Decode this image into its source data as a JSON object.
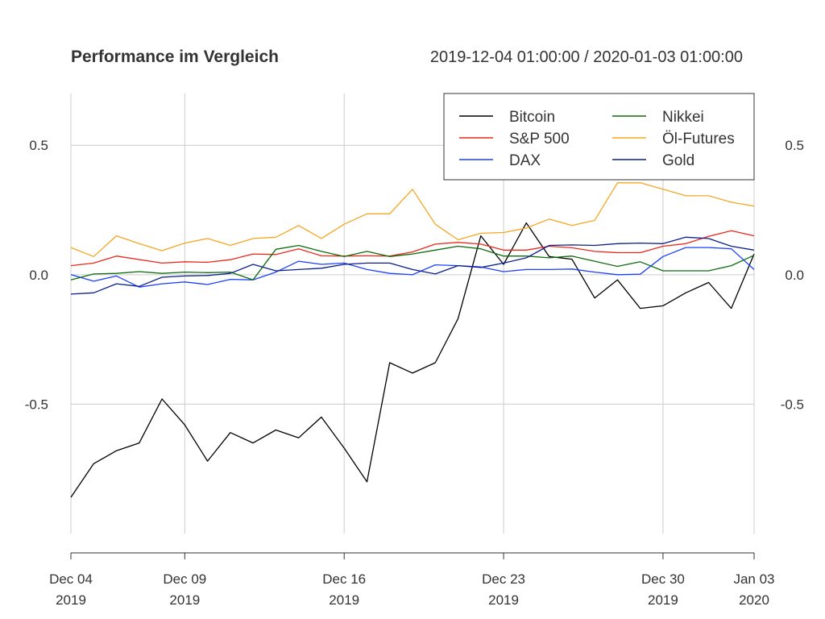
{
  "chart_data": {
    "type": "line",
    "title": "Performance im Vergleich",
    "period_label": "2019-12-04 01:00:00 / 2020-01-03 01:00:00",
    "x_start": "2019-12-04",
    "x_end": "2020-01-03",
    "x_ticks": [
      {
        "date": "2019-12-04",
        "line1": "Dec 04",
        "line2": "2019"
      },
      {
        "date": "2019-12-09",
        "line1": "Dec 09",
        "line2": "2019"
      },
      {
        "date": "2019-12-16",
        "line1": "Dec 16",
        "line2": "2019"
      },
      {
        "date": "2019-12-23",
        "line1": "Dec 23",
        "line2": "2019"
      },
      {
        "date": "2019-12-30",
        "line1": "Dec 30",
        "line2": "2019"
      },
      {
        "date": "2020-01-03",
        "line1": "Jan 03",
        "line2": "2020"
      }
    ],
    "y_ticks": [
      {
        "value": 0.5,
        "label": "0.5"
      },
      {
        "value": 0.0,
        "label": "0.0"
      },
      {
        "value": -0.5,
        "label": "-0.5"
      }
    ],
    "ylim": [
      -1.0,
      0.7
    ],
    "grid": true,
    "legend_position": "top-right",
    "legend_columns": 2,
    "series": [
      {
        "name": "Bitcoin",
        "color": "#000000",
        "x": [
          "2019-12-04",
          "2019-12-05",
          "2019-12-06",
          "2019-12-07",
          "2019-12-08",
          "2019-12-09",
          "2019-12-10",
          "2019-12-11",
          "2019-12-12",
          "2019-12-13",
          "2019-12-14",
          "2019-12-15",
          "2019-12-16",
          "2019-12-17",
          "2019-12-18",
          "2019-12-19",
          "2019-12-20",
          "2019-12-21",
          "2019-12-22",
          "2019-12-23",
          "2019-12-24",
          "2019-12-25",
          "2019-12-26",
          "2019-12-27",
          "2019-12-28",
          "2019-12-29",
          "2019-12-30",
          "2019-12-31",
          "2020-01-01",
          "2020-01-02",
          "2020-01-03"
        ],
        "y": [
          -0.86,
          -0.73,
          -0.68,
          -0.65,
          -0.48,
          -0.58,
          -0.72,
          -0.61,
          -0.65,
          -0.6,
          -0.63,
          -0.55,
          -0.67,
          -0.8,
          -0.34,
          -0.38,
          -0.34,
          -0.17,
          0.15,
          0.04,
          0.2,
          0.07,
          0.06,
          -0.09,
          -0.02,
          -0.13,
          -0.12,
          -0.07,
          -0.03,
          -0.13,
          0.08
        ]
      },
      {
        "name": "S&P 500",
        "color": "#e8291c",
        "x": [
          "2019-12-04",
          "2019-12-05",
          "2019-12-06",
          "2019-12-08",
          "2019-12-09",
          "2019-12-10",
          "2019-12-11",
          "2019-12-12",
          "2019-12-13",
          "2019-12-14",
          "2019-12-15",
          "2019-12-16",
          "2019-12-17",
          "2019-12-18",
          "2019-12-19",
          "2019-12-20",
          "2019-12-21",
          "2019-12-22",
          "2019-12-23",
          "2019-12-24",
          "2019-12-25",
          "2019-12-26",
          "2019-12-27",
          "2019-12-28",
          "2019-12-29",
          "2019-12-30",
          "2019-12-31",
          "2020-01-01",
          "2020-01-02",
          "2020-01-03"
        ],
        "y": [
          0.035,
          0.045,
          0.072,
          0.045,
          0.05,
          0.048,
          0.058,
          0.08,
          0.078,
          0.1,
          0.073,
          0.072,
          0.073,
          0.072,
          0.088,
          0.118,
          0.125,
          0.118,
          0.095,
          0.095,
          0.11,
          0.104,
          0.09,
          0.085,
          0.085,
          0.11,
          0.12,
          0.148,
          0.17,
          0.15
        ]
      },
      {
        "name": "DAX",
        "color": "#1f3fff",
        "x": [
          "2019-12-04",
          "2019-12-05",
          "2019-12-06",
          "2019-12-07",
          "2019-12-08",
          "2019-12-09",
          "2019-12-10",
          "2019-12-11",
          "2019-12-12",
          "2019-12-13",
          "2019-12-14",
          "2019-12-15",
          "2019-12-16",
          "2019-12-17",
          "2019-12-18",
          "2019-12-19",
          "2019-12-20",
          "2019-12-21",
          "2019-12-22",
          "2019-12-23",
          "2019-12-24",
          "2019-12-25",
          "2019-12-26",
          "2019-12-27",
          "2019-12-28",
          "2019-12-29",
          "2019-12-30",
          "2019-12-31",
          "2020-01-01",
          "2020-01-02",
          "2020-01-03"
        ],
        "y": [
          0.0,
          -0.025,
          -0.005,
          -0.048,
          -0.035,
          -0.028,
          -0.038,
          -0.018,
          -0.02,
          0.01,
          0.052,
          0.04,
          0.045,
          0.02,
          0.005,
          0.0,
          0.038,
          0.035,
          0.03,
          0.012,
          0.02,
          0.02,
          0.022,
          0.01,
          0.0,
          0.002,
          0.07,
          0.105,
          0.105,
          0.1,
          0.02
        ]
      },
      {
        "name": "Nikkei",
        "color": "#0e6b0e",
        "x": [
          "2019-12-04",
          "2019-12-05",
          "2019-12-06",
          "2019-12-07",
          "2019-12-08",
          "2019-12-09",
          "2019-12-10",
          "2019-12-11",
          "2019-12-12",
          "2019-12-13",
          "2019-12-14",
          "2019-12-15",
          "2019-12-16",
          "2019-12-17",
          "2019-12-18",
          "2019-12-19",
          "2019-12-20",
          "2019-12-21",
          "2019-12-22",
          "2019-12-23",
          "2019-12-24",
          "2019-12-25",
          "2019-12-26",
          "2019-12-27",
          "2019-12-28",
          "2019-12-29",
          "2019-12-30",
          "2019-12-31",
          "2020-01-01",
          "2020-01-02",
          "2020-01-03"
        ],
        "y": [
          -0.02,
          0.003,
          0.005,
          0.012,
          0.005,
          0.01,
          0.008,
          0.01,
          -0.02,
          0.098,
          0.113,
          0.09,
          0.07,
          0.09,
          0.07,
          0.08,
          0.095,
          0.11,
          0.1,
          0.072,
          0.072,
          0.065,
          0.072,
          0.052,
          0.032,
          0.05,
          0.015,
          0.015,
          0.015,
          0.035,
          0.075
        ]
      },
      {
        "name": "Öl-Futures",
        "color": "#f5a623",
        "x": [
          "2019-12-04",
          "2019-12-05",
          "2019-12-06",
          "2019-12-07",
          "2019-12-08",
          "2019-12-09",
          "2019-12-10",
          "2019-12-11",
          "2019-12-12",
          "2019-12-13",
          "2019-12-14",
          "2019-12-15",
          "2019-12-16",
          "2019-12-17",
          "2019-12-18",
          "2019-12-19",
          "2019-12-20",
          "2019-12-21",
          "2019-12-22",
          "2019-12-23",
          "2019-12-24",
          "2019-12-25",
          "2019-12-26",
          "2019-12-27",
          "2019-12-28",
          "2019-12-29",
          "2019-12-30",
          "2019-12-31",
          "2020-01-01",
          "2020-01-02",
          "2020-01-03"
        ],
        "y": [
          0.105,
          0.07,
          0.15,
          0.12,
          0.093,
          0.122,
          0.14,
          0.113,
          0.14,
          0.145,
          0.19,
          0.14,
          0.195,
          0.235,
          0.235,
          0.33,
          0.195,
          0.135,
          0.16,
          0.163,
          0.18,
          0.215,
          0.19,
          0.21,
          0.355,
          0.355,
          0.33,
          0.305,
          0.305,
          0.28,
          0.265
        ]
      },
      {
        "name": "Gold",
        "color": "#0b1e8c",
        "x": [
          "2019-12-04",
          "2019-12-05",
          "2019-12-06",
          "2019-12-07",
          "2019-12-08",
          "2019-12-09",
          "2019-12-10",
          "2019-12-11",
          "2019-12-12",
          "2019-12-13",
          "2019-12-14",
          "2019-12-15",
          "2019-12-16",
          "2019-12-17",
          "2019-12-18",
          "2019-12-19",
          "2019-12-20",
          "2019-12-21",
          "2019-12-22",
          "2019-12-23",
          "2019-12-24",
          "2019-12-25",
          "2019-12-26",
          "2019-12-27",
          "2019-12-28",
          "2019-12-29",
          "2019-12-30",
          "2019-12-31",
          "2020-01-01",
          "2020-01-02",
          "2020-01-03"
        ],
        "y": [
          -0.075,
          -0.07,
          -0.035,
          -0.045,
          -0.01,
          -0.005,
          -0.003,
          0.005,
          0.04,
          0.015,
          0.02,
          0.025,
          0.04,
          0.045,
          0.045,
          0.02,
          0.003,
          0.035,
          0.028,
          0.045,
          0.065,
          0.113,
          0.115,
          0.113,
          0.12,
          0.122,
          0.12,
          0.145,
          0.14,
          0.11,
          0.095
        ]
      }
    ]
  }
}
